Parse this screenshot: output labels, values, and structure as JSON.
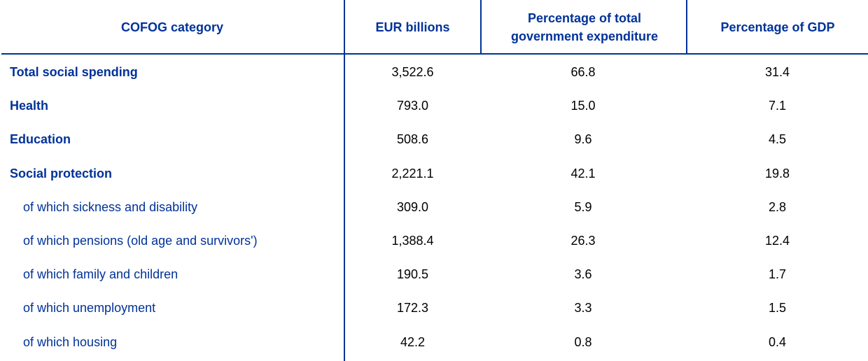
{
  "table": {
    "header": [
      "COFOG category",
      "EUR billions",
      "Percentage of total government expenditure",
      "Percentage of GDP"
    ],
    "rows": [
      [
        "Total social spending",
        "3,522.6",
        "66.8",
        "31.4"
      ],
      [
        "Health",
        "793.0",
        "15.0",
        "7.1"
      ],
      [
        "Education",
        "508.6",
        "9.6",
        "4.5"
      ],
      [
        "Social protection",
        "2,221.1",
        "42.1",
        "19.8"
      ],
      [
        "of which sickness and disability",
        "309.0",
        "5.9",
        "2.8"
      ],
      [
        "of which pensions (old age and survivors')",
        "1,388.4",
        "26.3",
        "12.4"
      ],
      [
        "of which family and children",
        "190.5",
        "3.6",
        "1.7"
      ],
      [
        "of which unemployment",
        "172.3",
        "3.3",
        "1.5"
      ],
      [
        "of which housing",
        "42.2",
        "0.8",
        "0.4"
      ]
    ]
  }
}
